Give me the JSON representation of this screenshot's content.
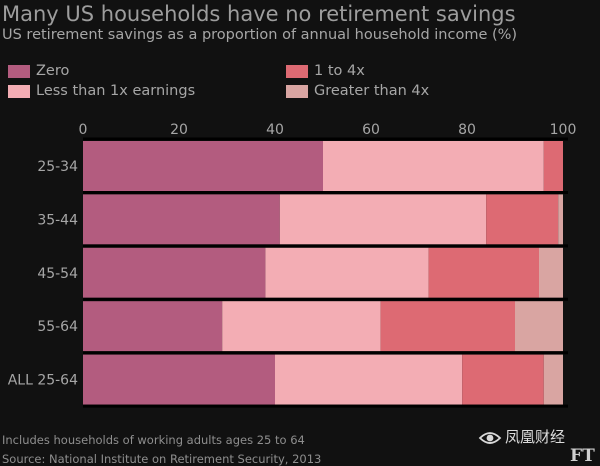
{
  "chart_data": {
    "type": "bar",
    "orientation": "horizontal",
    "stacked": true,
    "title": "Many US households have no retirement savings",
    "subtitle": "US retirement savings as a proportion of annual household income (%)",
    "categories": [
      "25-34",
      "35-44",
      "45-54",
      "55-64",
      "ALL 25-64"
    ],
    "series": [
      {
        "name": "Zero",
        "color": "#b35c7f",
        "values": [
          50,
          41,
          38,
          29,
          40
        ]
      },
      {
        "name": "Less than 1x earnings",
        "color": "#f3adb4",
        "values": [
          46,
          43,
          34,
          33,
          39
        ]
      },
      {
        "name": "1 to 4x",
        "color": "#dd6a73",
        "values": [
          4,
          15,
          23,
          28,
          17
        ]
      },
      {
        "name": "Greater than 4x",
        "color": "#d9a5a2",
        "values": [
          0,
          1,
          5,
          10,
          4
        ]
      }
    ],
    "xlim": [
      0,
      100
    ],
    "xticks": [
      "0",
      "20",
      "40",
      "60",
      "80",
      "100"
    ],
    "legend_position": "top",
    "xaxis_position": "top",
    "grid": false
  },
  "footer": {
    "note": "Includes households of working adults ages 25 to 64",
    "source": "Source: National Institute on Retirement Security, 2013"
  },
  "watermark": {
    "text": "凤凰财经",
    "icon": "eye-logo-icon"
  },
  "logo": {
    "text": "FT"
  },
  "colors": {
    "background": "#111111",
    "text": "#a6a6a6",
    "separator": "#000000"
  }
}
